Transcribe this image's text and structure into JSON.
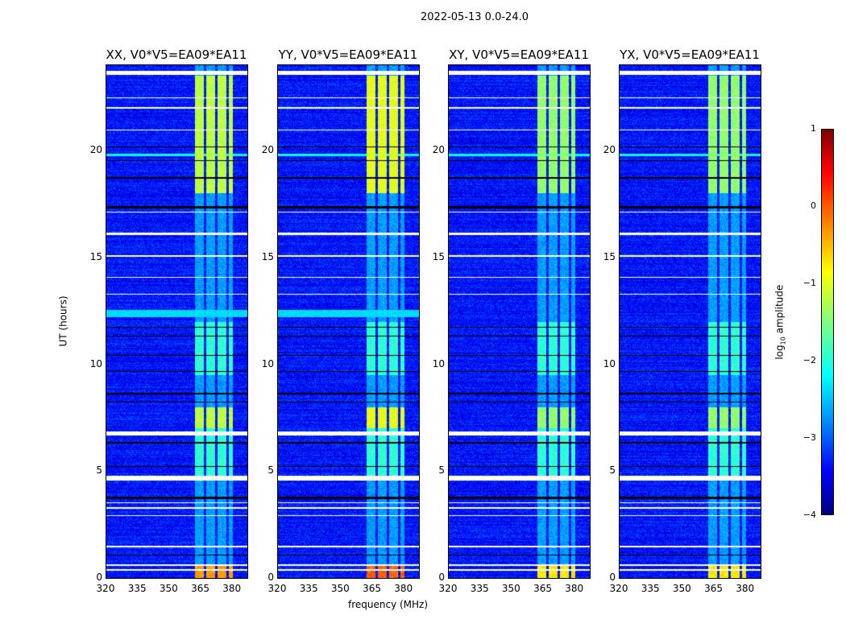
{
  "suptitle": "2022-05-13 0.0-24.0",
  "chart_data": {
    "type": "heatmap",
    "title": "2022-05-13 0.0-24.0",
    "xlabel": "frequency (MHz)",
    "ylabel": "UT (hours)",
    "xlim": [
      320,
      387
    ],
    "ylim": [
      0,
      24
    ],
    "xticks": [
      "320",
      "335",
      "350",
      "365",
      "380"
    ],
    "yticks": [
      "0",
      "5",
      "10",
      "15",
      "20"
    ],
    "panels": [
      {
        "title": "XX, V0*V5=EA09*EA11",
        "strong_band_level": -1.2,
        "low_band_level": -0.4
      },
      {
        "title": "YY, V0*V5=EA09*EA11",
        "strong_band_level": -1.0,
        "low_band_level": -0.1
      },
      {
        "title": "XY, V0*V5=EA09*EA11",
        "strong_band_level": -1.4,
        "low_band_level": -0.8
      },
      {
        "title": "YX, V0*V5=EA09*EA11",
        "strong_band_level": -1.4,
        "low_band_level": -0.8
      }
    ],
    "background_level": -3.3,
    "rfi_band_mhz": [
      362,
      382
    ],
    "flagged_white_hours": [
      [
        23.55,
        23.75
      ],
      [
        22.45,
        22.5
      ],
      [
        21.95,
        22.05
      ],
      [
        20.95,
        21.0
      ],
      [
        16.05,
        16.15
      ],
      [
        17.1,
        17.15
      ],
      [
        15.05,
        15.1
      ],
      [
        14.05,
        14.1
      ],
      [
        13.25,
        13.3
      ],
      [
        6.65,
        6.85
      ],
      [
        4.55,
        4.8
      ],
      [
        3.5,
        3.55
      ],
      [
        3.25,
        3.3
      ],
      [
        2.9,
        2.95
      ],
      [
        1.45,
        1.5
      ],
      [
        0.55,
        0.65
      ],
      [
        0.35,
        0.4
      ]
    ],
    "flagged_black_hours": [
      [
        22.4,
        22.42
      ],
      [
        21.7,
        21.72
      ],
      [
        20.15,
        20.2
      ],
      [
        19.5,
        19.55
      ],
      [
        19.2,
        19.22
      ],
      [
        18.7,
        18.75
      ],
      [
        17.3,
        17.4
      ],
      [
        11.7,
        11.75
      ],
      [
        11.3,
        11.35
      ],
      [
        10.4,
        10.45
      ],
      [
        9.65,
        9.7
      ],
      [
        8.6,
        8.65
      ],
      [
        8.2,
        8.25
      ],
      [
        6.3,
        6.35
      ],
      [
        5.2,
        5.25
      ],
      [
        3.7,
        3.8
      ],
      [
        1.05,
        1.1
      ]
    ],
    "colorbar": {
      "label": "log10 amplitude",
      "label_main": "log",
      "label_sub": "10",
      "label_rest": " amplitude",
      "range": [
        -4,
        1
      ],
      "ticks": [
        "1",
        "0",
        "−1",
        "−2",
        "−3",
        "−4"
      ],
      "colormap": "jet"
    }
  }
}
